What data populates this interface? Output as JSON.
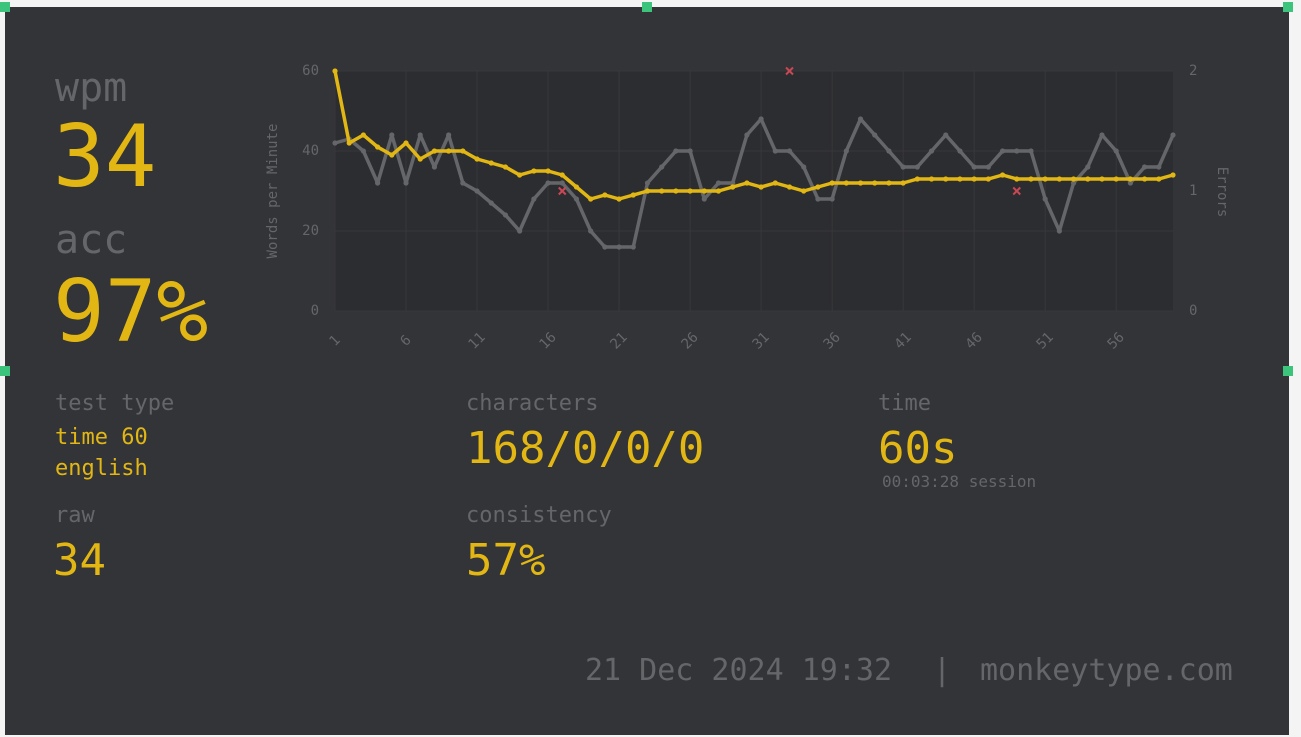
{
  "stats": {
    "wpm": {
      "label": "wpm",
      "value": "34"
    },
    "acc": {
      "label": "acc",
      "value": "97%"
    },
    "test_type": {
      "label": "test type",
      "lines": [
        "time 60",
        "english"
      ]
    },
    "raw": {
      "label": "raw",
      "value": "34"
    },
    "characters": {
      "label": "characters",
      "value": "168/0/0/0"
    },
    "consistency": {
      "label": "consistency",
      "value": "57%"
    },
    "time": {
      "label": "time",
      "value": "60s",
      "session": "00:03:28 session"
    }
  },
  "footer": {
    "date": "21 Dec 2024 19:32",
    "separator": "|",
    "site": "monkeytype.com"
  },
  "chart_data": {
    "type": "line",
    "ylabel": "Words per Minute",
    "y2label": "Errors",
    "x": [
      1,
      2,
      3,
      4,
      5,
      6,
      7,
      8,
      9,
      10,
      11,
      12,
      13,
      14,
      15,
      16,
      17,
      18,
      19,
      20,
      21,
      22,
      23,
      24,
      25,
      26,
      27,
      28,
      29,
      30,
      31,
      32,
      33,
      34,
      35,
      36,
      37,
      38,
      39,
      40,
      41,
      42,
      43,
      44,
      45,
      46,
      47,
      48,
      49,
      50,
      51,
      52,
      53,
      54,
      55,
      56,
      57,
      58,
      59,
      60
    ],
    "xlim": [
      1,
      60
    ],
    "xticks": [
      1,
      6,
      11,
      16,
      21,
      26,
      31,
      36,
      41,
      46,
      51,
      56
    ],
    "ylim": [
      0,
      60
    ],
    "yticks": [
      0,
      20,
      40,
      60
    ],
    "y2lim": [
      0,
      2
    ],
    "y2ticks": [
      0,
      1,
      2
    ],
    "series": [
      {
        "color": "#646669",
        "values": [
          42,
          43,
          40,
          32,
          44,
          32,
          44,
          36,
          44,
          32,
          30,
          27,
          24,
          20,
          28,
          32,
          32,
          28,
          20,
          16,
          16,
          16,
          32,
          36,
          40,
          40,
          28,
          32,
          32,
          44,
          48,
          40,
          40,
          36,
          28,
          28,
          40,
          48,
          44,
          40,
          36,
          36,
          40,
          44,
          40,
          36,
          36,
          40,
          40,
          40,
          28,
          20,
          32,
          36,
          44,
          40,
          32,
          36,
          36,
          44
        ]
      },
      {
        "color": "#e2b714",
        "values": [
          60,
          42,
          44,
          41,
          39,
          42,
          38,
          40,
          40,
          40,
          38,
          37,
          36,
          34,
          35,
          35,
          34,
          31,
          28,
          29,
          28,
          29,
          30,
          30,
          30,
          30,
          30,
          30,
          31,
          32,
          31,
          32,
          31,
          30,
          31,
          32,
          32,
          32,
          32,
          32,
          32,
          33,
          33,
          33,
          33,
          33,
          33,
          34,
          33,
          33,
          33,
          33,
          33,
          33,
          33,
          33,
          33,
          33,
          33,
          34
        ]
      },
      {
        "color": "#ca4754",
        "axis": "y2",
        "values": [
          null,
          null,
          null,
          null,
          null,
          null,
          null,
          null,
          null,
          null,
          null,
          null,
          null,
          null,
          null,
          null,
          1,
          null,
          null,
          null,
          null,
          null,
          null,
          null,
          null,
          null,
          null,
          null,
          null,
          null,
          null,
          null,
          2,
          null,
          null,
          null,
          null,
          null,
          null,
          null,
          null,
          null,
          null,
          null,
          null,
          null,
          null,
          null,
          1,
          null,
          null,
          null,
          null,
          null,
          null,
          null,
          null,
          null,
          null,
          null
        ]
      }
    ]
  }
}
